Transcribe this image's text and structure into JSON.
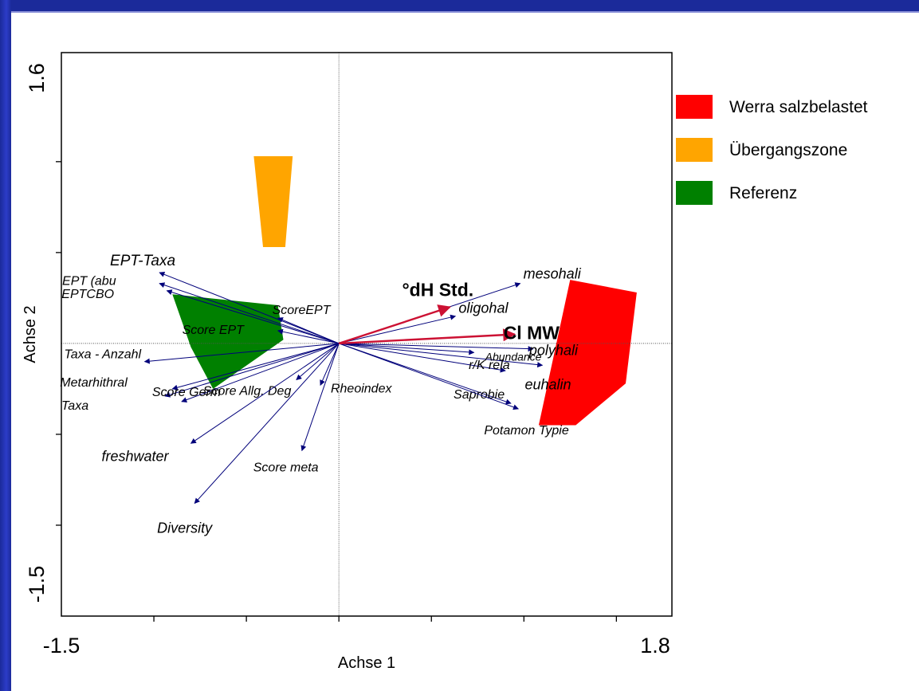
{
  "chart_data": {
    "type": "scatter",
    "subtype": "ordination-biplot",
    "title": "",
    "xlabel": "Achse 1",
    "ylabel": "Achse 2",
    "xlim": [
      -1.5,
      1.8
    ],
    "ylim": [
      -1.5,
      1.6
    ],
    "x_tick_labels": [
      "-1.5",
      "1.8"
    ],
    "y_tick_labels": [
      "1.6",
      "-1.5"
    ],
    "x_ticks": [
      -1.0,
      -0.5,
      0.0,
      0.5,
      1.0,
      1.5
    ],
    "y_ticks": [
      -1.0,
      -0.5,
      0.5,
      1.0
    ],
    "zero_lines": true,
    "legend_position": "right",
    "legend": [
      {
        "label": "Werra salzbelastet",
        "color": "#ff0000"
      },
      {
        "label": "Übergangszone",
        "color": "#ffa500"
      },
      {
        "label": "Referenz",
        "color": "#008000"
      }
    ],
    "groups": [
      {
        "label": "Werra salzbelastet",
        "color": "#ff0000",
        "polygon": [
          [
            1.25,
            0.35
          ],
          [
            1.61,
            0.28
          ],
          [
            1.55,
            -0.22
          ],
          [
            1.28,
            -0.45
          ],
          [
            1.08,
            -0.45
          ]
        ]
      },
      {
        "label": "Übergangszone",
        "color": "#ffa500",
        "polygon": [
          [
            -0.46,
            1.03
          ],
          [
            -0.25,
            1.03
          ],
          [
            -0.29,
            0.53
          ],
          [
            -0.41,
            0.53
          ]
        ]
      },
      {
        "label": "Referenz",
        "color": "#008000",
        "polygon": [
          [
            -0.9,
            0.27
          ],
          [
            -0.33,
            0.21
          ],
          [
            -0.3,
            0.02
          ],
          [
            -0.68,
            -0.25
          ],
          [
            -0.8,
            -0.02
          ]
        ]
      }
    ],
    "environmental_vectors": [
      {
        "label": "°dH Std.",
        "x": 0.6,
        "y": 0.2,
        "color": "#cc1133"
      },
      {
        "label": "Cl MW",
        "x": 0.95,
        "y": 0.05,
        "color": "#cc1133"
      }
    ],
    "species_vectors": [
      {
        "label": "mesohali",
        "x": 0.98,
        "y": 0.33
      },
      {
        "label": "oligohal",
        "x": 0.63,
        "y": 0.15
      },
      {
        "label": "polyhali",
        "x": 1.05,
        "y": -0.03
      },
      {
        "label": "euhalin",
        "x": 1.1,
        "y": -0.12
      },
      {
        "label": "Abundance",
        "x": 0.73,
        "y": -0.05
      },
      {
        "label": "r/K rela",
        "x": 0.9,
        "y": -0.15
      },
      {
        "label": "Saprobie",
        "x": 0.93,
        "y": -0.33
      },
      {
        "label": "Potamon Typie",
        "x": 0.97,
        "y": -0.36
      },
      {
        "label": "Rheoindex",
        "x": -0.1,
        "y": -0.23
      },
      {
        "label": "Score meta",
        "x": -0.2,
        "y": -0.59
      },
      {
        "label": "Score Allg. Deg",
        "x": -0.23,
        "y": -0.2
      },
      {
        "label": "Score EPT",
        "x": -0.33,
        "y": 0.07
      },
      {
        "label": "ScoreEPT",
        "x": -0.33,
        "y": 0.14
      },
      {
        "label": "EPT-Taxa",
        "x": -0.97,
        "y": 0.39
      },
      {
        "label": "EPT (abu",
        "x": -0.97,
        "y": 0.33
      },
      {
        "label": "EPTCBO",
        "x": -0.93,
        "y": 0.29
      },
      {
        "label": "Taxa - Anzahl",
        "x": -1.05,
        "y": -0.1
      },
      {
        "label": "Metarhithral",
        "x": -0.9,
        "y": -0.25
      },
      {
        "label": "Taxa",
        "x": -0.94,
        "y": -0.29
      },
      {
        "label": "Score Germ",
        "x": -0.85,
        "y": -0.32
      },
      {
        "label": "freshwater",
        "x": -0.8,
        "y": -0.55
      },
      {
        "label": "Diversity",
        "x": -0.78,
        "y": -0.88
      }
    ]
  }
}
